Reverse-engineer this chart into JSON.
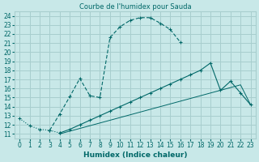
{
  "title": "Courbe de l'humidex pour Sauda",
  "xlabel": "Humidex (Indice chaleur)",
  "background_color": "#c8e8e8",
  "grid_color": "#a8cece",
  "line_color": "#006868",
  "xlim": [
    -0.5,
    23.5
  ],
  "ylim": [
    10.5,
    24.5
  ],
  "xticks": [
    0,
    1,
    2,
    3,
    4,
    5,
    6,
    7,
    8,
    9,
    10,
    11,
    12,
    13,
    14,
    15,
    16,
    17,
    18,
    19,
    20,
    21,
    22,
    23
  ],
  "yticks": [
    11,
    12,
    13,
    14,
    15,
    16,
    17,
    18,
    19,
    20,
    21,
    22,
    23,
    24
  ],
  "line1": {
    "x": [
      0,
      1,
      2,
      3,
      4
    ],
    "y": [
      12.7,
      11.9,
      11.5,
      11.4,
      11.1
    ],
    "marker": true,
    "dotted": true
  },
  "line2": {
    "x": [
      3,
      4,
      5,
      6,
      7,
      8,
      9,
      10,
      11,
      12,
      13,
      14,
      15,
      16
    ],
    "y": [
      11.4,
      13.2,
      15.1,
      17.1,
      15.2,
      15.0,
      21.6,
      22.8,
      23.5,
      23.8,
      23.8,
      23.2,
      22.5,
      21.1
    ],
    "marker": true,
    "dotted": false
  },
  "line3": {
    "x": [
      4,
      5,
      6,
      7,
      8,
      9,
      10,
      11,
      12,
      13,
      14,
      15,
      16,
      17,
      18,
      19,
      20,
      21,
      22,
      23
    ],
    "y": [
      11.1,
      11.5,
      12.0,
      12.5,
      13.0,
      13.5,
      14.0,
      14.5,
      15.0,
      15.5,
      16.0,
      16.5,
      17.0,
      17.5,
      18.0,
      18.8,
      15.8,
      16.8,
      15.5,
      14.2
    ],
    "marker": true,
    "dotted": false
  },
  "line4": {
    "x": [
      4,
      5,
      6,
      7,
      8,
      9,
      10,
      11,
      12,
      13,
      14,
      15,
      16,
      17,
      18,
      19,
      20,
      21,
      22,
      23
    ],
    "y": [
      11.0,
      11.3,
      11.6,
      11.9,
      12.2,
      12.5,
      12.8,
      13.1,
      13.4,
      13.7,
      14.0,
      14.3,
      14.6,
      14.9,
      15.2,
      15.5,
      15.8,
      16.1,
      16.4,
      14.2
    ],
    "marker": false,
    "dotted": false
  }
}
